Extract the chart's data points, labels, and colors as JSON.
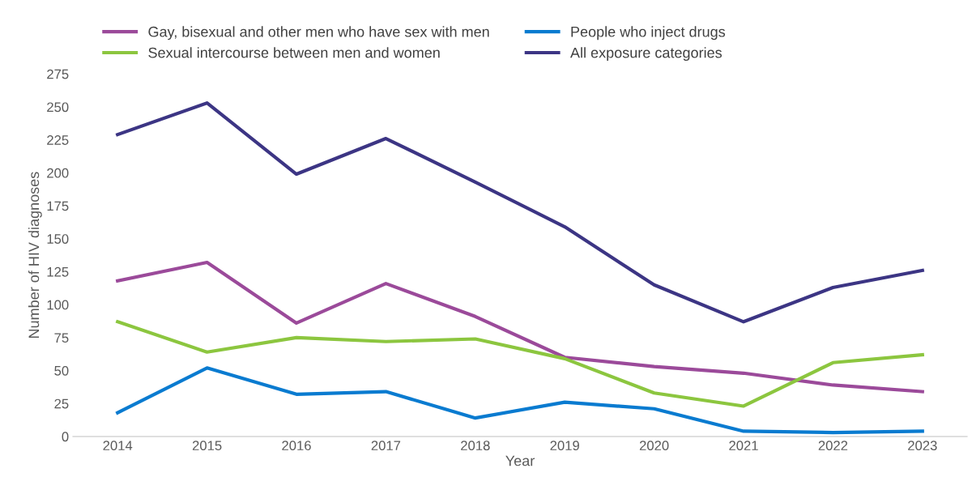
{
  "chart_data": {
    "type": "line",
    "xlabel": "Year",
    "ylabel": "Number of HIV diagnoses",
    "categories": [
      "2014",
      "2015",
      "2016",
      "2017",
      "2018",
      "2019",
      "2020",
      "2021",
      "2022",
      "2023"
    ],
    "ylim": [
      0,
      275
    ],
    "yticks": [
      0,
      25,
      50,
      75,
      100,
      125,
      150,
      175,
      200,
      225,
      250,
      275
    ],
    "grid": false,
    "legend": "top",
    "marker": "none",
    "line_style": "solid",
    "series": [
      {
        "name": "Gay, bisexual and other men who have sex with men",
        "color": "#9b4a9a",
        "values": [
          118,
          132,
          86,
          116,
          91,
          60,
          53,
          48,
          39,
          34
        ]
      },
      {
        "name": "Sexual intercourse between men and women",
        "color": "#8cc63f",
        "values": [
          87,
          64,
          75,
          72,
          74,
          59,
          33,
          23,
          56,
          62
        ]
      },
      {
        "name": "People who inject drugs",
        "color": "#0a7bd0",
        "values": [
          18,
          52,
          32,
          34,
          14,
          26,
          21,
          4,
          3,
          4
        ]
      },
      {
        "name": "All exposure categories",
        "color": "#3c3584",
        "values": [
          229,
          253,
          199,
          226,
          193,
          159,
          115,
          87,
          113,
          126
        ]
      }
    ]
  }
}
